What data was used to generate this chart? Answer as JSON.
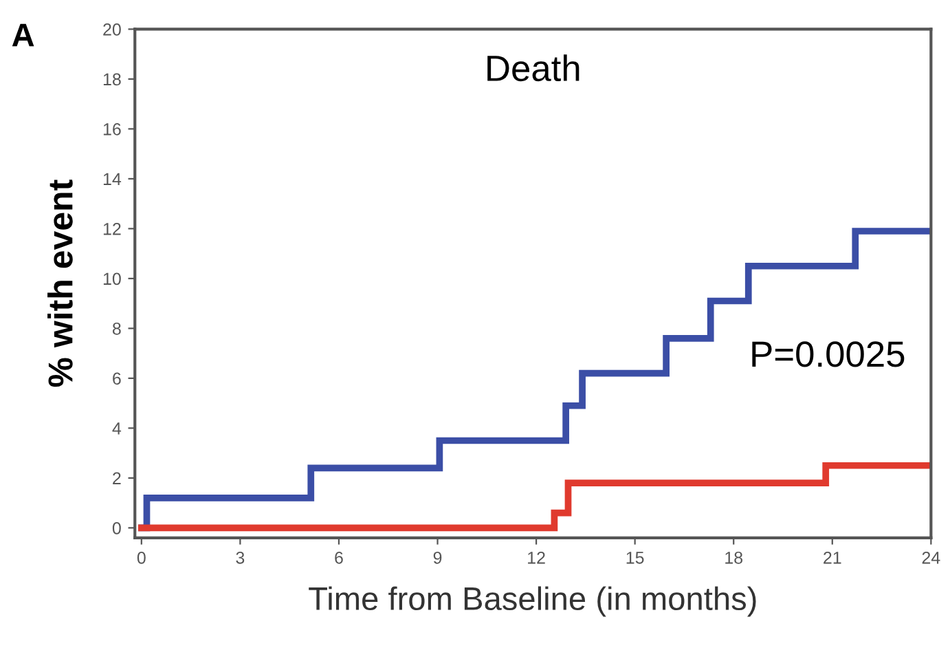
{
  "chart_data": {
    "type": "step",
    "title": "Death",
    "xlabel": "Time from Baseline (in months)",
    "ylabel": "% with event",
    "annotations": [
      "A",
      "P=0.0025"
    ],
    "series": [
      {
        "color": "#3b4ea6",
        "x": [
          0,
          0.16,
          5.15,
          9.06,
          12.9,
          13.4,
          15.95,
          17.3,
          18.45,
          21.7,
          24
        ],
        "values": [
          0,
          1.2,
          2.4,
          3.5,
          4.9,
          6.2,
          7.6,
          9.1,
          10.5,
          11.9,
          11.9
        ]
      },
      {
        "color": "#e03a2e",
        "x": [
          0,
          12.55,
          12.97,
          20.8,
          24
        ],
        "values": [
          0,
          0.6,
          1.8,
          2.5,
          2.5
        ]
      }
    ],
    "xlim": [
      -0.2,
      24
    ],
    "ylim": [
      -0.4,
      20
    ],
    "xticks": [
      0,
      3,
      6,
      9,
      12,
      15,
      18,
      21,
      24
    ],
    "yticks": [
      0,
      2,
      4,
      6,
      8,
      10,
      12,
      14,
      16,
      18,
      20
    ],
    "grid": false,
    "legend": false,
    "marker": "none",
    "line_style": "solid"
  }
}
